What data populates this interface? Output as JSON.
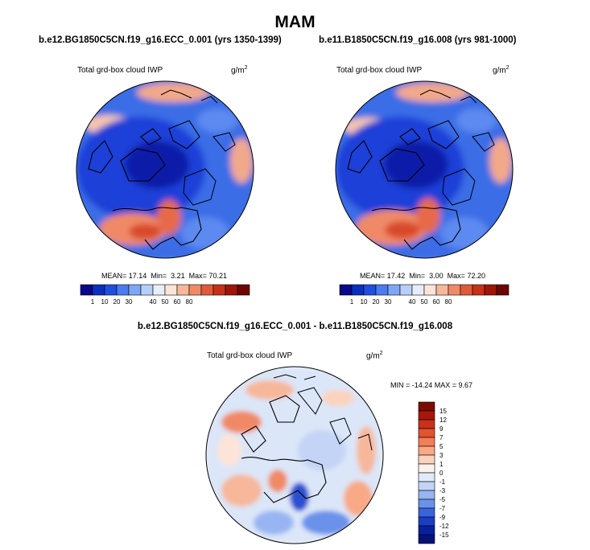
{
  "figure": {
    "title": "MAM",
    "units_base": "g/m",
    "units_exp": "2"
  },
  "panels": [
    {
      "case_title": "b.e12.BG1850C5CN.f19_g16.ECC_0.001 (yrs 1350-1399)",
      "variable": "Total grd-box cloud IWP",
      "stats": {
        "mean_label": "MEAN=",
        "mean": "17.14",
        "min_label": "Min=",
        "min": "3.21",
        "max_label": "Max=",
        "max": "70.21"
      }
    },
    {
      "case_title": "b.e11.B1850C5CN.f19_g16.008 (yrs 981-1000)",
      "variable": "Total grd-box cloud IWP",
      "stats": {
        "mean_label": "MEAN=",
        "mean": "17.42",
        "min_label": "Min=",
        "min": "3.00",
        "max_label": "Max=",
        "max": "72.20"
      }
    }
  ],
  "abs_colorbar": {
    "labels": [
      "1",
      "10",
      "20",
      "30",
      "40",
      "50",
      "60",
      "80"
    ],
    "colors": [
      "#08088a",
      "#0a2fc0",
      "#1f4fe0",
      "#4a7bf0",
      "#7ea6f6",
      "#b6cff8",
      "#e6eefa",
      "#fbe4d8",
      "#f7b79a",
      "#f08a66",
      "#e05a3a",
      "#c83018",
      "#a01508",
      "#6e0505"
    ]
  },
  "difference": {
    "title": "b.e12.BG1850C5CN.f19_g16.ECC_0.001 - b.e11.B1850C5CN.f19_g16.008",
    "variable": "Total grd-box cloud IWP",
    "stats_text": "MIN = -14.24 MAX =   9.67",
    "colorbar_labels": [
      "15",
      "12",
      "9",
      "7",
      "5",
      "3",
      "1",
      "0",
      "-1",
      "-3",
      "-5",
      "-7",
      "-9",
      "-12",
      "-15"
    ],
    "colorbar_colors": [
      "#7a0c03",
      "#a8170a",
      "#c9301a",
      "#e2532f",
      "#f27f55",
      "#f8a985",
      "#fbd3bc",
      "#fdf2ec",
      "#e2ebfa",
      "#c3d4f6",
      "#97b5f2",
      "#6a92ea",
      "#3a64dc",
      "#1a3dc4",
      "#0a1f9c",
      "#041277"
    ]
  }
}
